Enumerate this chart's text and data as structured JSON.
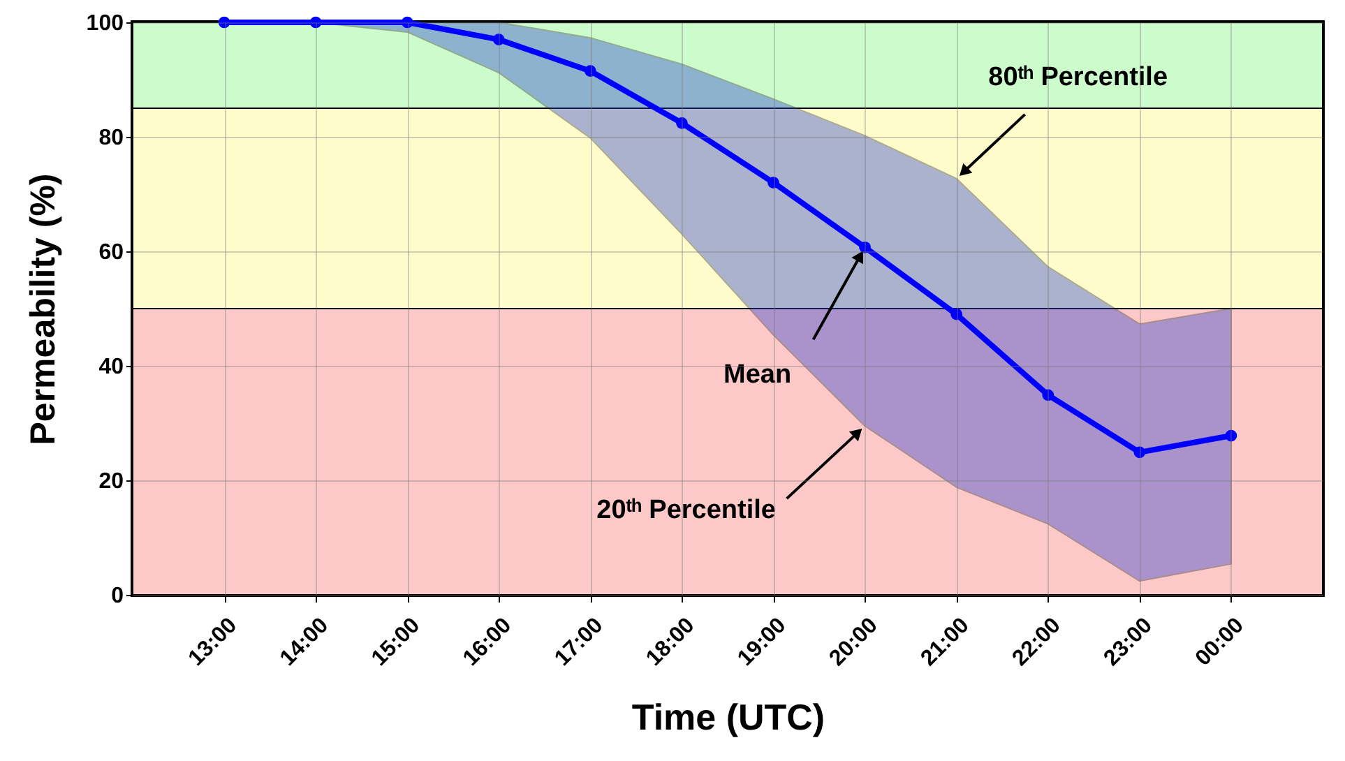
{
  "chart_data": {
    "type": "line",
    "xlabel": "Time (UTC)",
    "ylabel": "Permeability  (%)",
    "categories": [
      "13:00",
      "14:00",
      "15:00",
      "16:00",
      "17:00",
      "18:00",
      "19:00",
      "20:00",
      "21:00",
      "22:00",
      "23:00",
      "00:00"
    ],
    "series": [
      {
        "color": "#0000ff",
        "values": [
          100,
          100,
          100,
          97,
          91.5,
          82.4,
          72,
          60.7,
          49,
          34.9,
          24.9,
          27.8
        ],
        "lower": [
          100,
          100,
          98.3,
          91.2,
          79.8,
          63,
          45.4,
          29.5,
          18.8,
          12.4,
          2.4,
          5.4
        ],
        "upper": [
          100,
          100,
          100,
          100,
          97.3,
          92.7,
          86.6,
          80.2,
          72.7,
          57.3,
          47.3,
          50
        ]
      }
    ],
    "ylim": [
      0,
      100
    ],
    "yticks": [
      0,
      20,
      40,
      60,
      80,
      100
    ],
    "bands": [
      {
        "axis": "y",
        "from": 0,
        "to": 50,
        "color": "#fdc8c8"
      },
      {
        "axis": "y",
        "from": 50,
        "to": 85,
        "color": "#fffccc"
      },
      {
        "axis": "y",
        "from": 85,
        "to": 100,
        "color": "#ccfccc"
      }
    ],
    "annotations": [
      {
        "text": "80ᵗʰ Percentile",
        "x": "21:00",
        "y": 72.7
      },
      {
        "text": "Mean",
        "x": "20:00",
        "y": 60.7
      },
      {
        "text": "20ᵗʰ Percentile",
        "x": "20:00",
        "y": 29.5
      }
    ],
    "grid": true,
    "marker": "circle",
    "line_style": "solid"
  }
}
